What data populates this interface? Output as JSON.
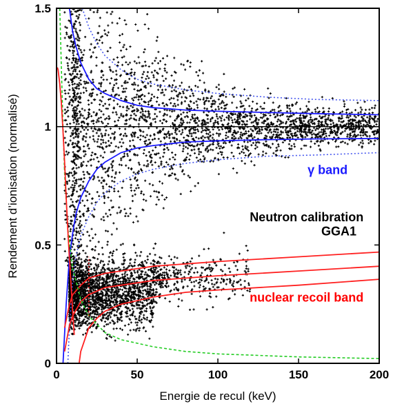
{
  "chart_data": {
    "type": "scatter",
    "title": "",
    "xlabel": "Energie de recul (keV)",
    "ylabel": "Rendement d’ionisation (normalisé)",
    "xlim": [
      0,
      200
    ],
    "ylim": [
      0,
      1.5
    ],
    "x_ticks": [
      0,
      50,
      100,
      150,
      200
    ],
    "x_tick_labels": [
      "0",
      "50",
      "100",
      "150",
      "200"
    ],
    "y_ticks": [
      0,
      0.5,
      1,
      1.5
    ],
    "y_tick_labels": [
      "0",
      "0.5",
      "1",
      "1.5"
    ],
    "grid": false,
    "legend": "none",
    "annotations": [
      {
        "id": "gamma",
        "text": "γ band",
        "color": "#1a1aff",
        "x": 168,
        "y": 0.8
      },
      {
        "id": "calib1",
        "text": "Neutron calibration",
        "color": "#000000",
        "x": 155,
        "y": 0.6
      },
      {
        "id": "calib2",
        "text": "GGA1",
        "color": "#000000",
        "x": 175,
        "y": 0.54
      },
      {
        "id": "nuclear",
        "text": "nuclear recoil band",
        "color": "#ff0000",
        "x": 155,
        "y": 0.26
      }
    ],
    "reference_line": {
      "y": 1,
      "color": "#000000"
    },
    "series": [
      {
        "id": "gamma_events",
        "kind": "points",
        "color": "#000000",
        "clusters": [
          {
            "x": [
              10,
              200
            ],
            "y_center": 1.0,
            "y_spread_low_energy": 0.3,
            "y_spread_high_energy": 0.04,
            "count": 2600
          },
          {
            "x": [
              8,
              60
            ],
            "y_center": 0.3,
            "y_spread": 0.07,
            "count": 2200
          },
          {
            "x": [
              60,
              120
            ],
            "y_center": 0.36,
            "y_spread": 0.05,
            "count": 350
          },
          {
            "x": [
              5,
              15
            ],
            "y": [
              0.4,
              1.5
            ],
            "count": 300
          }
        ]
      },
      {
        "id": "gamma_band_upper_solid",
        "kind": "line",
        "color": "#1a1aff",
        "style": "solid",
        "x": [
          8,
          10,
          12,
          15,
          20,
          25,
          30,
          40,
          50,
          60,
          80,
          100,
          130,
          160,
          200
        ],
        "y": [
          1.5,
          1.4,
          1.34,
          1.27,
          1.2,
          1.16,
          1.14,
          1.11,
          1.09,
          1.08,
          1.07,
          1.065,
          1.06,
          1.055,
          1.05
        ]
      },
      {
        "id": "gamma_band_lower_solid",
        "kind": "line",
        "color": "#1a1aff",
        "style": "solid",
        "x": [
          4,
          6,
          8,
          10,
          12,
          15,
          20,
          25,
          30,
          40,
          50,
          60,
          80,
          100,
          130,
          160,
          200
        ],
        "y": [
          0.0,
          0.25,
          0.45,
          0.55,
          0.63,
          0.7,
          0.77,
          0.82,
          0.85,
          0.89,
          0.91,
          0.92,
          0.935,
          0.94,
          0.945,
          0.948,
          0.95
        ]
      },
      {
        "id": "gamma_band_upper_dotted",
        "kind": "line",
        "color": "#4455ee",
        "style": "dotted",
        "x": [
          16,
          20,
          25,
          30,
          40,
          50,
          60,
          80,
          100,
          130,
          160,
          200
        ],
        "y": [
          1.5,
          1.42,
          1.35,
          1.3,
          1.24,
          1.2,
          1.18,
          1.155,
          1.14,
          1.125,
          1.115,
          1.11
        ]
      },
      {
        "id": "gamma_band_lower_dotted",
        "kind": "line",
        "color": "#4455ee",
        "style": "dotted",
        "x": [
          7,
          8,
          10,
          12,
          15,
          20,
          25,
          30,
          40,
          50,
          60,
          80,
          100,
          130,
          160,
          200
        ],
        "y": [
          0.0,
          0.15,
          0.35,
          0.45,
          0.54,
          0.62,
          0.68,
          0.72,
          0.77,
          0.8,
          0.82,
          0.845,
          0.86,
          0.875,
          0.88,
          0.89
        ]
      },
      {
        "id": "nuclear_band_upper",
        "kind": "line",
        "color": "#ff2020",
        "style": "solid",
        "x": [
          5,
          8,
          10,
          15,
          20,
          30,
          40,
          60,
          80,
          100,
          150,
          200
        ],
        "y": [
          0.15,
          0.25,
          0.29,
          0.33,
          0.36,
          0.38,
          0.39,
          0.41,
          0.42,
          0.43,
          0.45,
          0.47
        ]
      },
      {
        "id": "nuclear_band_center",
        "kind": "line",
        "color": "#ff2020",
        "style": "solid",
        "x": [
          5,
          8,
          10,
          15,
          20,
          30,
          40,
          60,
          80,
          100,
          150,
          200
        ],
        "y": [
          0.05,
          0.16,
          0.2,
          0.26,
          0.29,
          0.32,
          0.33,
          0.35,
          0.36,
          0.37,
          0.39,
          0.41
        ]
      },
      {
        "id": "nuclear_band_lower",
        "kind": "line",
        "color": "#ff2020",
        "style": "solid",
        "x": [
          14,
          15,
          20,
          25,
          30,
          40,
          60,
          80,
          100,
          150,
          200
        ],
        "y": [
          0.0,
          0.05,
          0.15,
          0.19,
          0.22,
          0.25,
          0.28,
          0.3,
          0.31,
          0.33,
          0.355
        ]
      },
      {
        "id": "ionization_threshold",
        "kind": "line",
        "color": "#22cc22",
        "style": "dashed",
        "x": [
          2,
          3,
          4,
          5,
          7,
          10,
          15,
          20,
          30,
          40,
          60,
          80,
          100,
          150,
          200
        ],
        "y": [
          1.5,
          1.25,
          1.0,
          0.8,
          0.57,
          0.4,
          0.27,
          0.2,
          0.13,
          0.1,
          0.07,
          0.05,
          0.04,
          0.027,
          0.02
        ]
      },
      {
        "id": "recoil_threshold_curve",
        "kind": "line",
        "color": "#ff2020",
        "style": "solid",
        "x": [
          0.5,
          1,
          2,
          3,
          4,
          5,
          6,
          7,
          8,
          9,
          10,
          11
        ],
        "y": [
          1.25,
          1.24,
          1.18,
          1.1,
          0.98,
          0.85,
          0.7,
          0.56,
          0.44,
          0.33,
          0.22,
          0.12
        ]
      },
      {
        "id": "energy_threshold_line",
        "kind": "line",
        "color": "#ff2020",
        "style": "dotted",
        "x": [
          20,
          20
        ],
        "y": [
          0.2,
          0.45
        ]
      }
    ]
  }
}
